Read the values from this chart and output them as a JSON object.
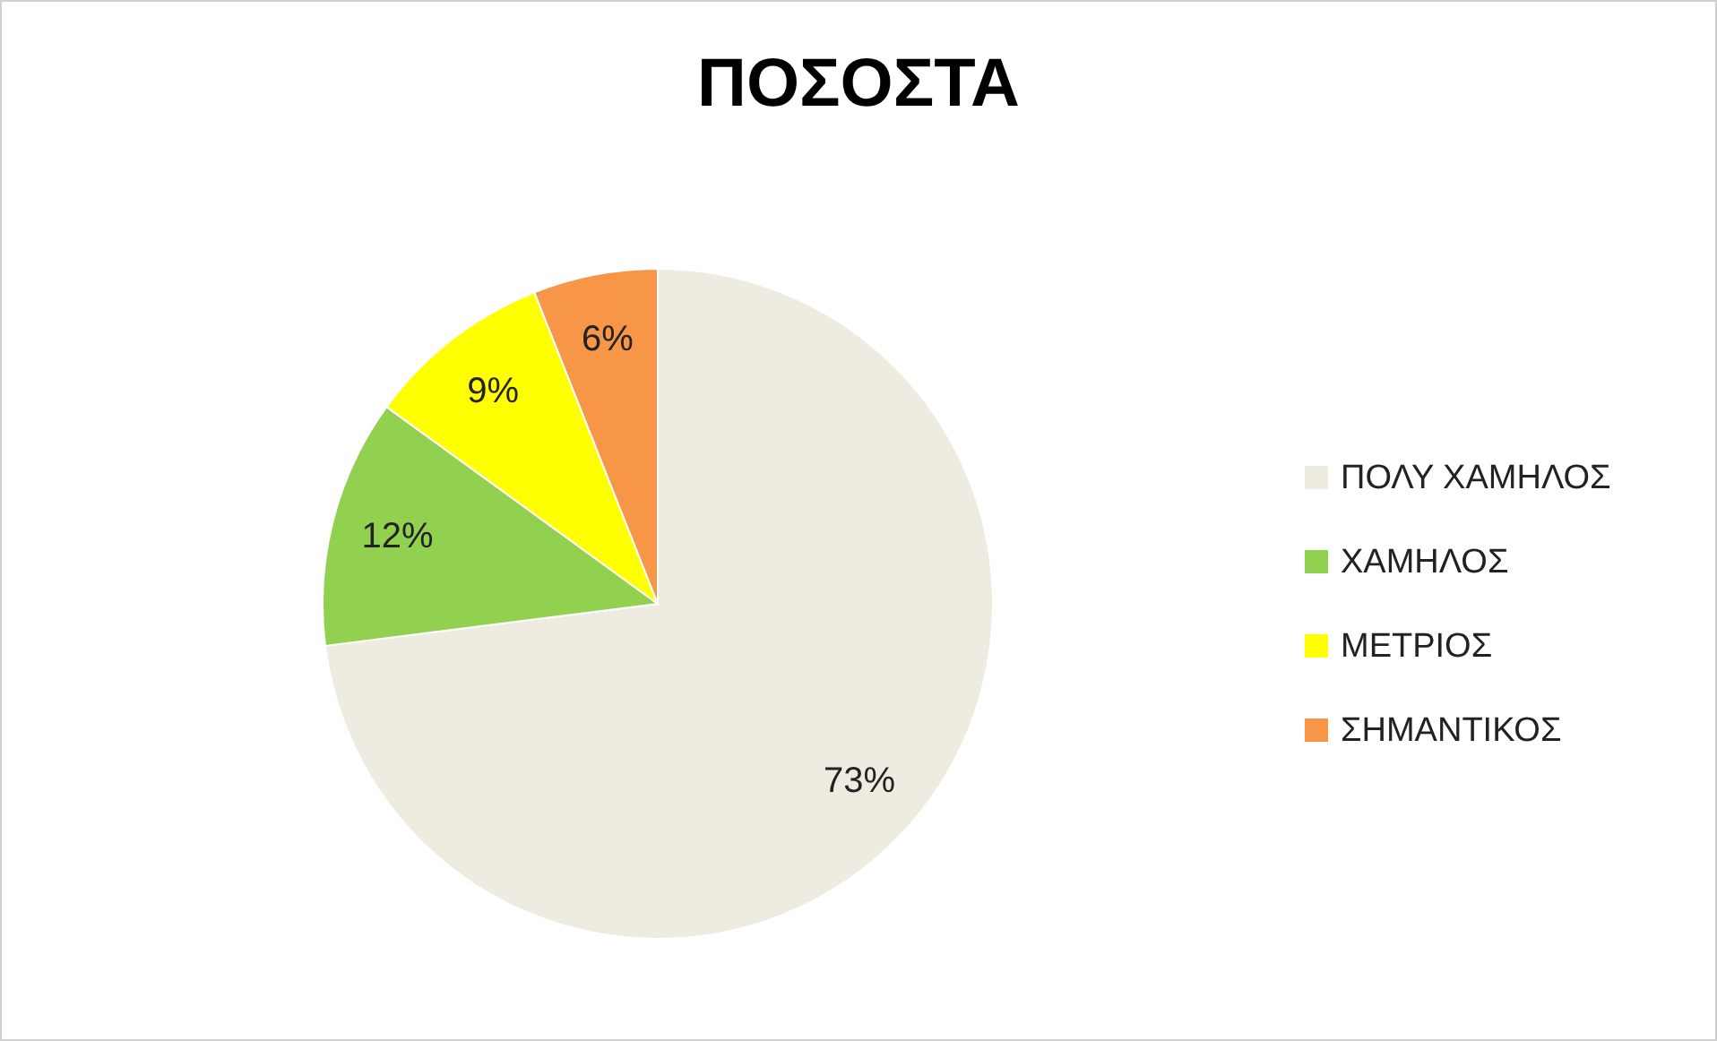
{
  "chart_data": {
    "type": "pie",
    "title": "ΠΟΣΟΣΤΑ",
    "categories": [
      "ΠΟΛΥ ΧΑΜΗΛΟΣ",
      "ΧΑΜΗΛΟΣ",
      "ΜΕΤΡΙΟΣ",
      "ΣΗΜΑΝΤΙΚΟΣ"
    ],
    "values": [
      73,
      12,
      9,
      6
    ],
    "colors": [
      "#eeece1",
      "#92d050",
      "#ffff00",
      "#f79646"
    ],
    "value_labels": [
      "73%",
      "12%",
      "9%",
      "6%"
    ],
    "legend": "right"
  }
}
